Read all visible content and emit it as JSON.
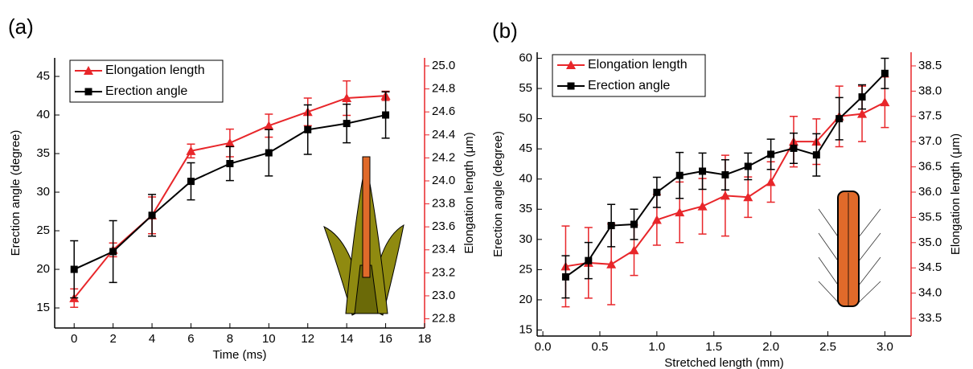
{
  "chart_data": [
    {
      "type": "line",
      "title": "(a)",
      "xlabel": "Time (ms)",
      "ylabel": "Erection angle (degree)",
      "y2label": "Elongation length (μm)",
      "legend": "upper left",
      "x": [
        0,
        2,
        4,
        6,
        8,
        10,
        12,
        14,
        16
      ],
      "xlim": [
        -1,
        18
      ],
      "xticks": [
        0,
        2,
        4,
        6,
        8,
        10,
        12,
        14,
        16,
        18
      ],
      "ylim": [
        12.4,
        47.4
      ],
      "yticks": [
        15,
        20,
        25,
        30,
        35,
        40,
        45
      ],
      "y2lim": [
        22.72,
        25.07
      ],
      "y2ticks": [
        {
          "value": 22.8,
          "label": "22.8"
        },
        {
          "value": 23.0,
          "label": "23.0"
        },
        {
          "value": 23.2,
          "label": "23.2"
        },
        {
          "value": 23.4,
          "label": "23.4"
        },
        {
          "value": 23.6,
          "label": "23.6"
        },
        {
          "value": 23.8,
          "label": "23.8"
        },
        {
          "value": 24.0,
          "label": "24.0"
        },
        {
          "value": 24.2,
          "label": "24.2"
        },
        {
          "value": 24.4,
          "label": "24.4"
        },
        {
          "value": 24.6,
          "label": "24.6"
        },
        {
          "value": 24.8,
          "label": "24.8"
        },
        {
          "value": 25.0,
          "label": "25.0"
        }
      ],
      "series": [
        {
          "name": "Elongation length",
          "color": "#e8262a",
          "marker": "triangle",
          "axis": "y2",
          "values": [
            22.98,
            23.4,
            23.7,
            24.26,
            24.33,
            24.48,
            24.6,
            24.72,
            24.74
          ],
          "errors": [
            0.08,
            0.06,
            0.16,
            0.06,
            0.12,
            0.1,
            0.12,
            0.15,
            0.04
          ]
        },
        {
          "name": "Erection angle",
          "color": "#000000",
          "marker": "square",
          "values": [
            20,
            22.3,
            27,
            31.4,
            33.7,
            35.1,
            38.1,
            38.9,
            40
          ],
          "errors": [
            3.7,
            4,
            2.7,
            2.4,
            2.2,
            3,
            3.2,
            2.5,
            3
          ]
        }
      ]
    },
    {
      "type": "line",
      "title": "(b)",
      "xlabel": "Stretched length (mm)",
      "ylabel": "Erection angle (degree)",
      "y2label": "Elongation length (μm)",
      "legend": "upper left",
      "x": [
        0.2,
        0.4,
        0.6,
        0.8,
        1.0,
        1.2,
        1.4,
        1.6,
        1.8,
        2.0,
        2.2,
        2.4,
        2.6,
        2.8,
        3.0
      ],
      "xlim": [
        -0.05,
        3.23
      ],
      "xticks": [
        {
          "value": 0,
          "label": "0.0"
        },
        0.5,
        {
          "value": 1,
          "label": "1.0"
        },
        1.5,
        {
          "value": 2,
          "label": "2.0"
        },
        2.5,
        {
          "value": 3,
          "label": "3.0"
        }
      ],
      "ylim": [
        14,
        61
      ],
      "yticks": [
        15,
        20,
        25,
        30,
        35,
        40,
        45,
        50,
        55,
        60
      ],
      "y2lim": [
        33.15,
        38.77
      ],
      "y2ticks": [
        33.5,
        {
          "value": 34,
          "label": "34.0"
        },
        34.5,
        {
          "value": 35,
          "label": "35.0"
        },
        35.5,
        {
          "value": 36,
          "label": "36.0"
        },
        36.5,
        {
          "value": 37,
          "label": "37.0"
        },
        37.5,
        {
          "value": 38,
          "label": "38.0"
        },
        38.5
      ],
      "series": [
        {
          "name": "Elongation length",
          "color": "#e8262a",
          "marker": "triangle",
          "axis": "y2",
          "values": [
            34.53,
            34.6,
            34.57,
            34.85,
            35.45,
            35.6,
            35.72,
            35.93,
            35.9,
            36.2,
            37,
            37,
            37.5,
            37.55,
            37.78
          ],
          "errors": [
            0.8,
            0.7,
            0.8,
            0.5,
            0.5,
            0.6,
            0.55,
            0.8,
            0.4,
            0.4,
            0.5,
            0.45,
            0.6,
            0.55,
            0.5
          ]
        },
        {
          "name": "Erection angle",
          "color": "#000000",
          "marker": "square",
          "values": [
            23.8,
            26.5,
            32.3,
            32.5,
            37.8,
            40.6,
            41.3,
            40.7,
            42.1,
            44.1,
            45.1,
            44,
            50,
            53.6,
            57.5
          ],
          "errors": [
            3.5,
            3,
            3.5,
            2.5,
            2.5,
            3.8,
            3,
            2.5,
            2.2,
            2.5,
            2.5,
            3.5,
            3.5,
            2,
            2.5
          ]
        }
      ]
    }
  ]
}
